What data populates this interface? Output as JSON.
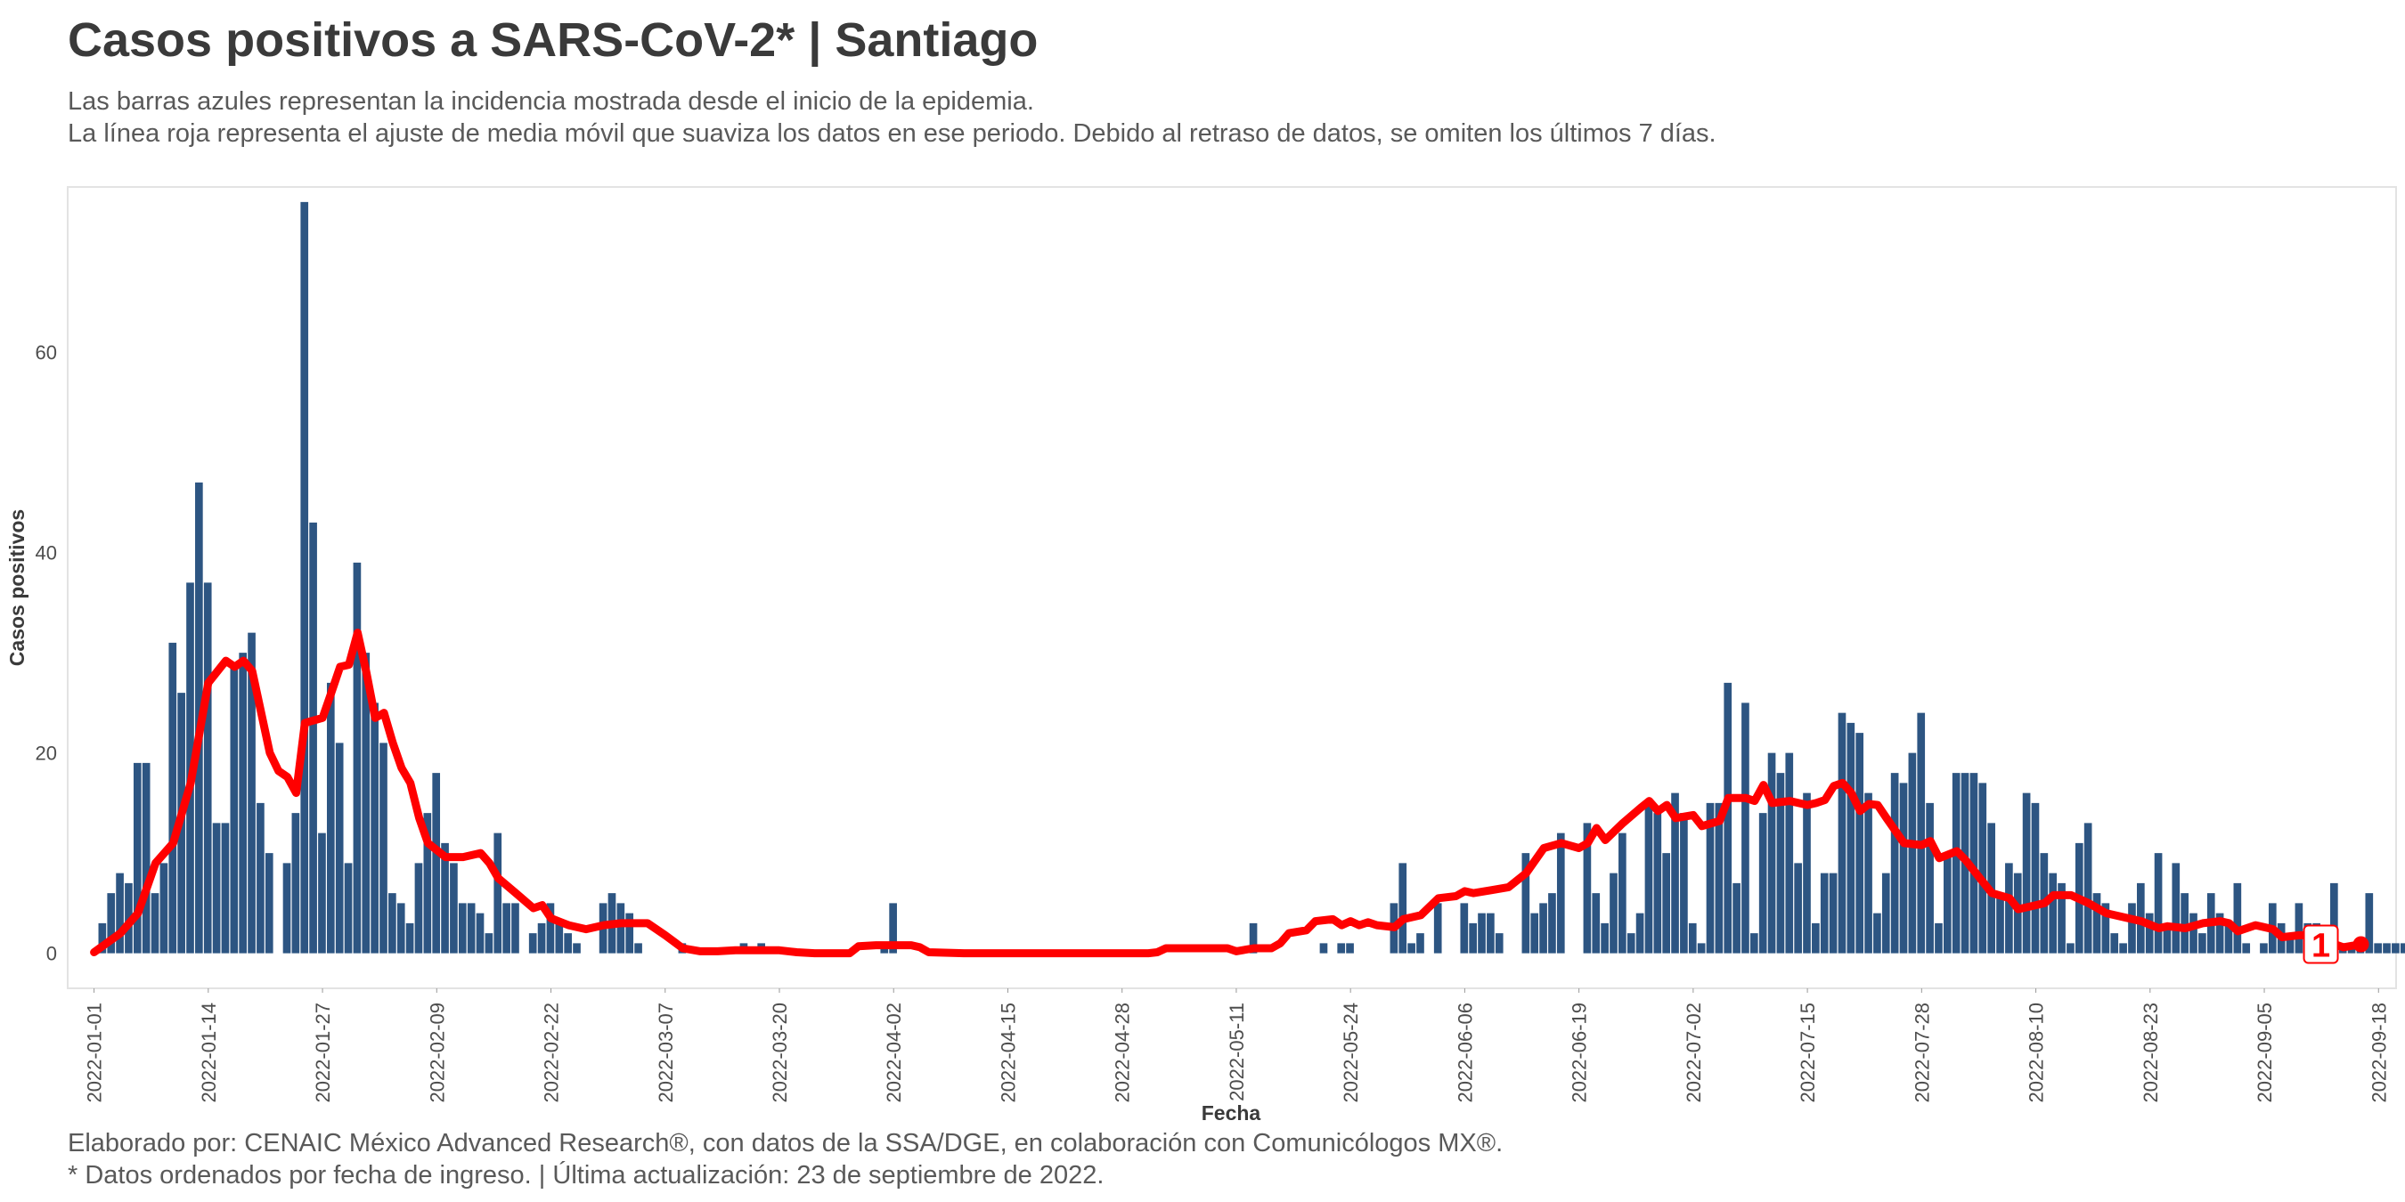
{
  "header": {
    "title": "Casos positivos a SARS-CoV-2* | Santiago",
    "subtitle_line1": "Las barras azules representan la incidencia mostrada desde el inicio de la epidemia.",
    "subtitle_line2": "La línea roja representa el ajuste de media móvil que suaviza los datos en ese periodo. Debido al retraso de datos, se omiten los últimos 7 días."
  },
  "footer": {
    "line1": "Elaborado por: CENAIC México Advanced Research®, con datos de la SSA/DGE, en colaboración con Comunicólogos MX®.",
    "line2": "* Datos ordenados por fecha de ingreso. | Última actualización: 23 de septiembre de 2022."
  },
  "colors": {
    "bars": "#2d5582",
    "line": "#ff0000",
    "panel_border": "#e3e3e3"
  },
  "chart_data": {
    "type": "bar",
    "xlabel": "Fecha",
    "ylabel": "Casos positivos",
    "start_date": "2022-01-01",
    "end_date": "2022-09-16",
    "xlim": [
      "2021-12-29",
      "2022-09-20"
    ],
    "ylim": [
      -3.5,
      76.5
    ],
    "y_ticks": [
      0,
      20,
      40,
      60
    ],
    "x_tick_labels": [
      "2022-01-01",
      "2022-01-14",
      "2022-01-27",
      "2022-02-09",
      "2022-02-22",
      "2022-03-07",
      "2022-03-20",
      "2022-04-02",
      "2022-04-15",
      "2022-04-28",
      "2022-05-11",
      "2022-05-24",
      "2022-06-06",
      "2022-06-19",
      "2022-07-02",
      "2022-07-15",
      "2022-07-28",
      "2022-08-10",
      "2022-08-23",
      "2022-09-05",
      "2022-09-18"
    ],
    "grid": false,
    "legend": "none",
    "end_label": "1",
    "series": [
      {
        "name": "Casos positivos",
        "type": "bar",
        "values": [
          0,
          3,
          6,
          8,
          7,
          19,
          19,
          6,
          9,
          31,
          26,
          37,
          47,
          37,
          13,
          13,
          29,
          30,
          32,
          15,
          10,
          0,
          9,
          14,
          75,
          43,
          12,
          27,
          21,
          9,
          39,
          30,
          25,
          21,
          6,
          5,
          3,
          9,
          14,
          18,
          11,
          9,
          5,
          5,
          4,
          2,
          12,
          5,
          5,
          0,
          2,
          3,
          5,
          3,
          2,
          1,
          0,
          0,
          5,
          6,
          5,
          4,
          1,
          0,
          0,
          0,
          0,
          1,
          0,
          0,
          0,
          0,
          0,
          0,
          1,
          0,
          1,
          0,
          0,
          0,
          0,
          0,
          0,
          0,
          0,
          0,
          0,
          0,
          0,
          0,
          1,
          5,
          0,
          0,
          0,
          0,
          0,
          0,
          0,
          0,
          0,
          0,
          0,
          0,
          0,
          0,
          0,
          0,
          0,
          0,
          0,
          0,
          0,
          0,
          0,
          0,
          0,
          0,
          0,
          0,
          0,
          0,
          0,
          0,
          0,
          0,
          0,
          0,
          0,
          0,
          0,
          0,
          3,
          0,
          0,
          0,
          0,
          0,
          0,
          0,
          1,
          0,
          1,
          1,
          0,
          0,
          0,
          0,
          5,
          9,
          1,
          2,
          0,
          5,
          0,
          0,
          5,
          3,
          4,
          4,
          2,
          0,
          0,
          10,
          4,
          5,
          6,
          12,
          0,
          0,
          13,
          6,
          3,
          8,
          12,
          2,
          4,
          15,
          14,
          10,
          16,
          14,
          3,
          1,
          15,
          15,
          27,
          7,
          25,
          2,
          14,
          20,
          18,
          20,
          9,
          16,
          3,
          8,
          8,
          24,
          23,
          22,
          16,
          4,
          8,
          18,
          17,
          20,
          24,
          15,
          3,
          10,
          18,
          18,
          18,
          17,
          13,
          6,
          9,
          8,
          16,
          15,
          10,
          8,
          7,
          1,
          11,
          13,
          6,
          5,
          2,
          1,
          5,
          7,
          4,
          10,
          3,
          9,
          6,
          4,
          2,
          6,
          4,
          3,
          7,
          1,
          0,
          1,
          5,
          3,
          2,
          5,
          3,
          3,
          2,
          7,
          1,
          1,
          1,
          6,
          1,
          1,
          1,
          1,
          0,
          0,
          1,
          0,
          0,
          0,
          0,
          0,
          0
        ]
      },
      {
        "name": "Media móvil",
        "type": "line",
        "points": [
          [
            "2022-01-01",
            0.1
          ],
          [
            "2022-01-04",
            2
          ],
          [
            "2022-01-06",
            4
          ],
          [
            "2022-01-08",
            9
          ],
          [
            "2022-01-10",
            11
          ],
          [
            "2022-01-12",
            17
          ],
          [
            "2022-01-14",
            27
          ],
          [
            "2022-01-16",
            29.2
          ],
          [
            "2022-01-17",
            28.6
          ],
          [
            "2022-01-18",
            29.2
          ],
          [
            "2022-01-19",
            28.2
          ],
          [
            "2022-01-21",
            20
          ],
          [
            "2022-01-22",
            18.2
          ],
          [
            "2022-01-23",
            17.6
          ],
          [
            "2022-01-24",
            16
          ],
          [
            "2022-01-25",
            23
          ],
          [
            "2022-01-27",
            23.5
          ],
          [
            "2022-01-28",
            26
          ],
          [
            "2022-01-29",
            28.6
          ],
          [
            "2022-01-30",
            28.8
          ],
          [
            "2022-01-31",
            32
          ],
          [
            "2022-02-01",
            28
          ],
          [
            "2022-02-02",
            23.5
          ],
          [
            "2022-02-03",
            24
          ],
          [
            "2022-02-04",
            21
          ],
          [
            "2022-02-05",
            18.5
          ],
          [
            "2022-02-06",
            17
          ],
          [
            "2022-02-07",
            13.5
          ],
          [
            "2022-02-08",
            11
          ],
          [
            "2022-02-10",
            9.6
          ],
          [
            "2022-02-12",
            9.6
          ],
          [
            "2022-02-14",
            10
          ],
          [
            "2022-02-15",
            9
          ],
          [
            "2022-02-16",
            7.5
          ],
          [
            "2022-02-18",
            6
          ],
          [
            "2022-02-20",
            4.5
          ],
          [
            "2022-02-21",
            4.8
          ],
          [
            "2022-02-22",
            3.5
          ],
          [
            "2022-02-24",
            2.8
          ],
          [
            "2022-02-26",
            2.4
          ],
          [
            "2022-02-28",
            2.8
          ],
          [
            "2022-03-02",
            3
          ],
          [
            "2022-03-05",
            3
          ],
          [
            "2022-03-07",
            1.8
          ],
          [
            "2022-03-09",
            0.5
          ],
          [
            "2022-03-11",
            0.2
          ],
          [
            "2022-03-13",
            0.2
          ],
          [
            "2022-03-15",
            0.3
          ],
          [
            "2022-03-17",
            0.3
          ],
          [
            "2022-03-20",
            0.3
          ],
          [
            "2022-03-22",
            0.1
          ],
          [
            "2022-03-24",
            0
          ],
          [
            "2022-03-28",
            0
          ],
          [
            "2022-03-29",
            0.7
          ],
          [
            "2022-03-31",
            0.8
          ],
          [
            "2022-04-04",
            0.8
          ],
          [
            "2022-04-05",
            0.6
          ],
          [
            "2022-04-06",
            0.1
          ],
          [
            "2022-04-10",
            0
          ],
          [
            "2022-04-20",
            0
          ],
          [
            "2022-05-01",
            0
          ],
          [
            "2022-05-02",
            0.1
          ],
          [
            "2022-05-03",
            0.5
          ],
          [
            "2022-05-10",
            0.5
          ],
          [
            "2022-05-11",
            0.2
          ],
          [
            "2022-05-13",
            0.5
          ],
          [
            "2022-05-15",
            0.5
          ],
          [
            "2022-05-16",
            1
          ],
          [
            "2022-05-17",
            2
          ],
          [
            "2022-05-19",
            2.3
          ],
          [
            "2022-05-20",
            3.2
          ],
          [
            "2022-05-22",
            3.4
          ],
          [
            "2022-05-23",
            2.8
          ],
          [
            "2022-05-24",
            3.2
          ],
          [
            "2022-05-25",
            2.8
          ],
          [
            "2022-05-26",
            3.1
          ],
          [
            "2022-05-27",
            2.8
          ],
          [
            "2022-05-29",
            2.6
          ],
          [
            "2022-05-30",
            3.4
          ],
          [
            "2022-06-01",
            3.8
          ],
          [
            "2022-06-03",
            5.5
          ],
          [
            "2022-06-05",
            5.7
          ],
          [
            "2022-06-06",
            6.2
          ],
          [
            "2022-06-07",
            6
          ],
          [
            "2022-06-09",
            6.3
          ],
          [
            "2022-06-11",
            6.6
          ],
          [
            "2022-06-13",
            8
          ],
          [
            "2022-06-15",
            10.5
          ],
          [
            "2022-06-17",
            11
          ],
          [
            "2022-06-19",
            10.5
          ],
          [
            "2022-06-20",
            11
          ],
          [
            "2022-06-21",
            12.5
          ],
          [
            "2022-06-22",
            11.3
          ],
          [
            "2022-06-24",
            13
          ],
          [
            "2022-06-26",
            14.5
          ],
          [
            "2022-06-27",
            15.2
          ],
          [
            "2022-06-28",
            14.2
          ],
          [
            "2022-06-29",
            14.8
          ],
          [
            "2022-06-30",
            13.5
          ],
          [
            "2022-07-02",
            13.8
          ],
          [
            "2022-07-03",
            12.7
          ],
          [
            "2022-07-05",
            13.2
          ],
          [
            "2022-07-06",
            15.5
          ],
          [
            "2022-07-08",
            15.5
          ],
          [
            "2022-07-09",
            15.2
          ],
          [
            "2022-07-10",
            16.8
          ],
          [
            "2022-07-11",
            15
          ],
          [
            "2022-07-13",
            15.2
          ],
          [
            "2022-07-15",
            14.8
          ],
          [
            "2022-07-16",
            15
          ],
          [
            "2022-07-17",
            15.3
          ],
          [
            "2022-07-18",
            16.7
          ],
          [
            "2022-07-19",
            17
          ],
          [
            "2022-07-20",
            16
          ],
          [
            "2022-07-21",
            14.2
          ],
          [
            "2022-07-22",
            14.9
          ],
          [
            "2022-07-23",
            14.8
          ],
          [
            "2022-07-24",
            13.5
          ],
          [
            "2022-07-26",
            11
          ],
          [
            "2022-07-28",
            10.8
          ],
          [
            "2022-07-29",
            11.2
          ],
          [
            "2022-07-30",
            9.5
          ],
          [
            "2022-08-01",
            10.2
          ],
          [
            "2022-08-02",
            9.3
          ],
          [
            "2022-08-03",
            8.2
          ],
          [
            "2022-08-05",
            6
          ],
          [
            "2022-08-07",
            5.5
          ],
          [
            "2022-08-08",
            4.4
          ],
          [
            "2022-08-09",
            4.6
          ],
          [
            "2022-08-11",
            5
          ],
          [
            "2022-08-12",
            5.8
          ],
          [
            "2022-08-14",
            5.8
          ],
          [
            "2022-08-16",
            5
          ],
          [
            "2022-08-18",
            4
          ],
          [
            "2022-08-20",
            3.6
          ],
          [
            "2022-08-22",
            3.2
          ],
          [
            "2022-08-24",
            2.5
          ],
          [
            "2022-08-25",
            2.7
          ],
          [
            "2022-08-27",
            2.5
          ],
          [
            "2022-08-29",
            3
          ],
          [
            "2022-08-31",
            3.2
          ],
          [
            "2022-09-01",
            3
          ],
          [
            "2022-09-02",
            2.2
          ],
          [
            "2022-09-04",
            2.8
          ],
          [
            "2022-09-06",
            2.4
          ],
          [
            "2022-09-07",
            1.6
          ],
          [
            "2022-09-09",
            1.8
          ],
          [
            "2022-09-10",
            1.8
          ],
          [
            "2022-09-11",
            1
          ],
          [
            "2022-09-13",
            0.9
          ],
          [
            "2022-09-14",
            0.6
          ],
          [
            "2022-09-16",
            0.9
          ]
        ]
      }
    ]
  }
}
